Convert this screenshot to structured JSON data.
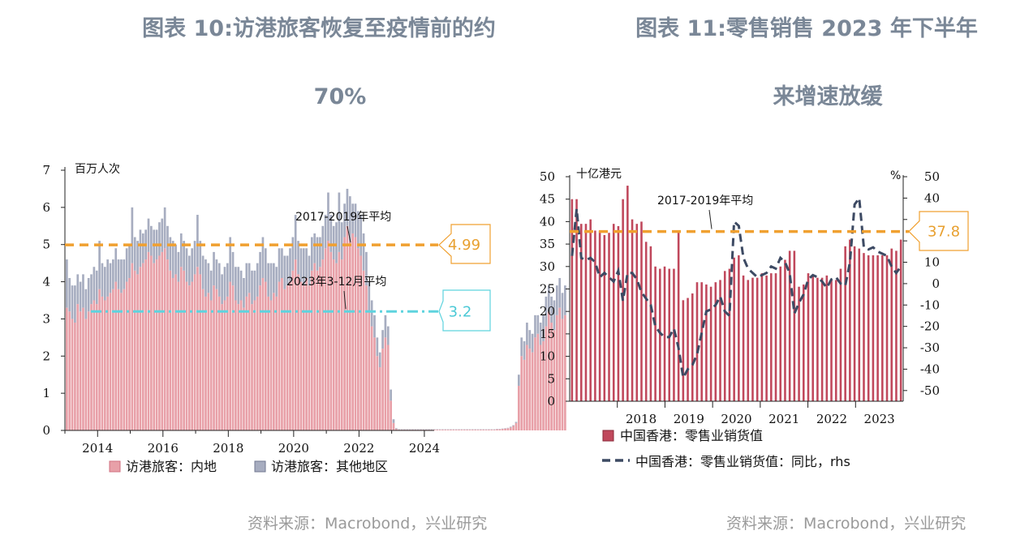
{
  "left": {
    "title_line1": "图表 10:访港旅客恢复至疫情前的约",
    "title_line2": "70%",
    "source": "资料来源：Macrobond，兴业研究"
  },
  "right": {
    "title_line1": "图表 11:零售销售 2023 年下半年",
    "title_line2": "来增速放缓",
    "source": "资料来源：Macrobond，兴业研究"
  },
  "chart_data": [
    {
      "type": "bar",
      "stacked": true,
      "unit_label": "百万人次",
      "x_range": [
        2013.0,
        2024.3
      ],
      "xticks": [
        2014,
        2016,
        2018,
        2020,
        2022,
        2024
      ],
      "ylim": [
        0,
        7
      ],
      "yticks": [
        0,
        1,
        2,
        3,
        4,
        5,
        6,
        7
      ],
      "colors": {
        "mainland": "#e8a0a8",
        "other": "#a7adc0",
        "avg1": "#f0a030",
        "avg2": "#5ed3de"
      },
      "legend": [
        "访港旅客：内地",
        "访港旅客：其他地区"
      ],
      "reference_lines": [
        {
          "label": "2017-2019年平均",
          "value": 4.99,
          "callout": "4.99"
        },
        {
          "label": "2023年3-12月平均",
          "value": 3.2,
          "callout": "3.2"
        }
      ],
      "series": [
        {
          "name": "访港旅客：内地",
          "values": [
            3.3,
            3.2,
            3.0,
            2.9,
            3.4,
            3.2,
            3.3,
            3.0,
            3.2,
            3.4,
            3.5,
            3.4,
            3.8,
            3.6,
            3.5,
            3.6,
            3.7,
            3.8,
            4.0,
            3.8,
            3.7,
            3.8,
            4.0,
            4.1,
            4.5,
            4.3,
            4.2,
            4.4,
            4.5,
            4.6,
            4.8,
            4.7,
            4.5,
            4.6,
            4.7,
            4.8,
            4.9,
            4.6,
            4.3,
            4.1,
            4.2,
            4.0,
            4.4,
            4.3,
            4.0,
            3.9,
            4.0,
            4.2,
            4.4,
            4.2,
            3.8,
            3.6,
            3.7,
            3.5,
            3.9,
            3.8,
            3.6,
            3.4,
            3.5,
            3.6,
            4.0,
            3.9,
            3.5,
            3.4,
            3.5,
            3.3,
            3.6,
            3.7,
            3.4,
            3.5,
            3.6,
            3.9,
            4.1,
            4.0,
            3.6,
            3.5,
            3.7,
            3.6,
            4.0,
            4.1,
            3.8,
            3.9,
            4.0,
            4.3,
            4.6,
            4.2,
            4.0,
            3.9,
            4.1,
            3.9,
            4.3,
            4.5,
            4.3,
            4.4,
            4.6,
            4.9,
            5.1,
            4.8,
            4.6,
            4.5,
            4.8,
            4.6,
            5.2,
            5.5,
            5.1,
            5.3,
            5.2,
            4.9,
            4.7,
            4.3,
            3.9,
            3.2,
            2.8,
            2.5,
            2.0,
            1.7,
            2.2,
            2.5,
            2.3,
            0.8,
            0.2,
            0.04,
            0.02,
            0.02,
            0.02,
            0.02,
            0.02,
            0.02,
            0.02,
            0.02,
            0.02,
            0.02,
            0.02,
            0.02,
            0.02,
            0.02,
            0.02,
            0.02,
            0.02,
            0.02,
            0.02,
            0.02,
            0.02,
            0.02,
            0.02,
            0.02,
            0.02,
            0.02,
            0.02,
            0.02,
            0.02,
            0.02,
            0.02,
            0.02,
            0.02,
            0.02,
            0.02,
            0.02,
            0.03,
            0.03,
            0.04,
            0.05,
            0.06,
            0.08,
            0.12,
            0.2,
            1.2,
            2.0,
            1.9,
            2.3,
            2.2,
            2.1,
            2.5,
            2.6,
            2.3,
            2.4,
            2.8,
            3.2,
            2.9,
            2.7,
            3.1,
            3.3,
            3.0,
            3.1
          ]
        },
        {
          "name": "访港旅客：其他地区",
          "values": [
            1.3,
            0.9,
            0.9,
            1.0,
            0.8,
            0.8,
            0.9,
            0.8,
            0.9,
            0.8,
            0.9,
            0.9,
            1.3,
            0.9,
            0.9,
            1.0,
            0.8,
            0.8,
            0.9,
            0.8,
            0.9,
            0.8,
            0.9,
            0.9,
            1.5,
            0.9,
            0.9,
            1.0,
            0.8,
            0.8,
            0.9,
            0.8,
            0.9,
            0.8,
            0.9,
            0.9,
            1.1,
            0.9,
            0.9,
            1.0,
            0.8,
            0.8,
            0.9,
            0.8,
            0.9,
            0.8,
            0.9,
            0.9,
            1.4,
            0.9,
            0.9,
            1.0,
            0.8,
            0.8,
            0.9,
            0.8,
            0.9,
            0.8,
            0.9,
            0.9,
            1.2,
            0.9,
            0.9,
            1.0,
            0.8,
            0.8,
            0.9,
            0.8,
            0.9,
            0.8,
            0.9,
            0.9,
            1.1,
            0.9,
            0.9,
            1.0,
            0.8,
            0.8,
            0.9,
            0.8,
            0.9,
            0.8,
            0.9,
            0.9,
            1.2,
            0.9,
            0.9,
            1.0,
            0.8,
            0.8,
            0.9,
            0.8,
            0.9,
            0.8,
            0.9,
            0.9,
            1.3,
            1.0,
            0.9,
            1.1,
            1.6,
            1.0,
            0.9,
            1.0,
            1.2,
            0.8,
            0.9,
            1.0,
            1.1,
            1.0,
            0.9,
            0.8,
            0.7,
            0.6,
            0.5,
            0.4,
            0.5,
            0.6,
            0.5,
            0.3,
            0.1,
            0.02,
            0.01,
            0.01,
            0.01,
            0.01,
            0.01,
            0.01,
            0.01,
            0.01,
            0.01,
            0.01,
            0.01,
            0.01,
            0.01,
            0.01,
            0.01,
            0.01,
            0.01,
            0.01,
            0.01,
            0.01,
            0.01,
            0.01,
            0.01,
            0.01,
            0.01,
            0.01,
            0.01,
            0.01,
            0.01,
            0.01,
            0.01,
            0.01,
            0.01,
            0.01,
            0.01,
            0.01,
            0.01,
            0.01,
            0.01,
            0.01,
            0.01,
            0.02,
            0.02,
            0.03,
            0.3,
            0.5,
            0.5,
            0.6,
            0.5,
            0.5,
            0.6,
            0.5,
            0.6,
            0.7,
            0.8,
            0.7,
            0.7,
            0.8,
            0.8,
            0.8,
            0.7,
            0.8
          ]
        }
      ]
    },
    {
      "type": "bar",
      "combo": "bar + line (rhs)",
      "unit_label_left": "十亿港元",
      "unit_label_right": "%",
      "x_range": [
        2017.0,
        2024.0
      ],
      "xticks": [
        "2018",
        "2019",
        "2020",
        "2021",
        "2022",
        "2023"
      ],
      "ylim_left": [
        0,
        50
      ],
      "yticks_left": [
        0,
        5,
        10,
        15,
        20,
        25,
        30,
        35,
        40,
        45,
        50
      ],
      "ylim_right": [
        -55,
        50
      ],
      "yticks_right": [
        -50,
        -40,
        -30,
        -20,
        -10,
        0,
        10,
        20,
        30,
        40,
        50
      ],
      "colors": {
        "bars": "#c0485c",
        "line": "#3d4a63",
        "avg": "#f0a030"
      },
      "legend": [
        "中国香港：零售业销货值",
        "中国香港：零售业销货值：同比，rhs"
      ],
      "reference_lines": [
        {
          "label": "2017-2019年平均",
          "value": 37.8,
          "callout": "37.8"
        }
      ],
      "series": [
        {
          "name": "中国香港：零售业销货值",
          "axis": "left",
          "values": [
            45,
            45,
            39.5,
            39.5,
            40.5,
            38,
            38,
            37,
            37.5,
            39.5,
            39,
            45,
            48,
            40.5,
            39.5,
            40,
            35.5,
            34.5,
            30,
            29.5,
            30,
            29.5,
            29.5,
            38,
            22.5,
            23,
            24,
            26.5,
            26.5,
            26,
            25.5,
            26.5,
            27,
            29,
            29.5,
            32,
            32.5,
            28,
            27,
            27.5,
            27.5,
            28.5,
            28,
            28.5,
            28.5,
            30,
            31.5,
            33.5,
            33.5,
            25.5,
            26,
            28.5,
            28,
            27.5,
            27.5,
            28,
            27,
            27,
            29.5,
            34.5,
            36,
            34.5,
            34,
            33,
            32.5,
            32.5,
            32.5,
            32.5,
            32.5,
            34,
            33.5,
            36
          ]
        },
        {
          "name": "中国香港：零售业销货值：同比，rhs",
          "axis": "right",
          "values": [
            13,
            35,
            12,
            11,
            12,
            10,
            3,
            5,
            3,
            1,
            6,
            -8,
            5,
            5,
            2,
            -4,
            -7,
            -10,
            -20,
            -23,
            -25,
            -25,
            -21,
            -30,
            -44,
            -40,
            -38,
            -33,
            -23,
            -13,
            -12,
            -10,
            -6,
            -13,
            -15,
            29,
            27,
            12,
            7,
            5,
            3,
            4,
            5,
            8,
            7,
            12,
            10,
            5,
            -14,
            -9,
            -5,
            2,
            4,
            3,
            1,
            -2,
            2,
            3,
            0,
            -1,
            10,
            37,
            40,
            17,
            16,
            17,
            15,
            14,
            13,
            8,
            5,
            8
          ]
        }
      ]
    }
  ]
}
